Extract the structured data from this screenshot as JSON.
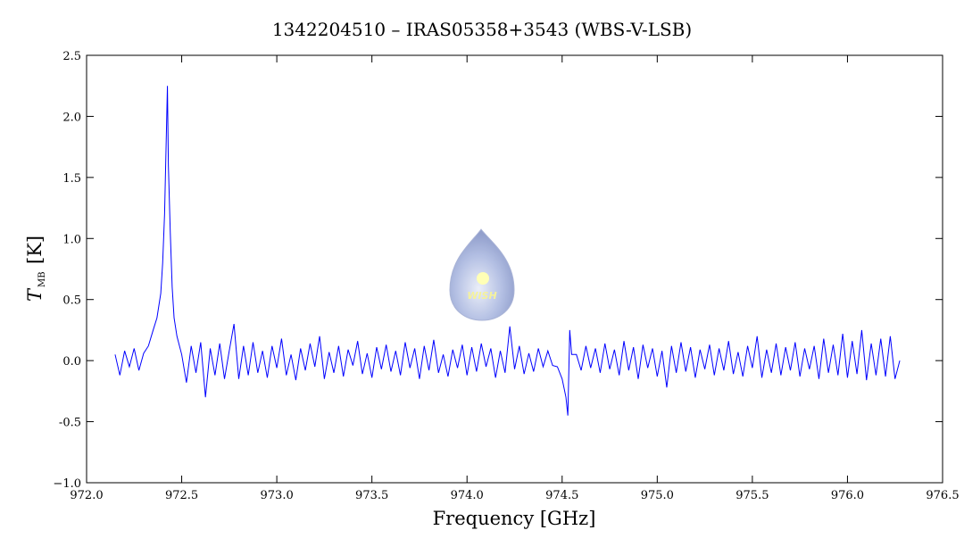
{
  "chart_data": {
    "type": "line",
    "title": "1342204510 – IRAS05358+3543 (WBS-V-LSB)",
    "xlabel": "Frequency [GHz]",
    "ylabel": "T",
    "ylabel_sub": "MB",
    "ylabel_unit": "[K]",
    "logo_text": "WISH",
    "color": "#0000ff",
    "x": [
      972.15,
      972.175,
      972.2,
      972.225,
      972.25,
      972.275,
      972.3,
      972.325,
      972.35,
      972.37,
      972.39,
      972.4,
      972.41,
      972.42,
      972.425,
      972.43,
      972.44,
      972.45,
      972.46,
      972.475,
      972.5,
      972.525,
      972.55,
      972.575,
      972.6,
      972.625,
      972.65,
      972.675,
      972.7,
      972.725,
      972.75,
      972.775,
      972.8,
      972.825,
      972.85,
      972.875,
      972.9,
      972.925,
      972.95,
      972.975,
      973.0,
      973.025,
      973.05,
      973.075,
      973.1,
      973.125,
      973.15,
      973.175,
      973.2,
      973.225,
      973.25,
      973.275,
      973.3,
      973.325,
      973.35,
      973.375,
      973.4,
      973.425,
      973.45,
      973.475,
      973.5,
      973.525,
      973.55,
      973.575,
      973.6,
      973.625,
      973.65,
      973.675,
      973.7,
      973.725,
      973.75,
      973.775,
      973.8,
      973.825,
      973.85,
      973.875,
      973.9,
      973.925,
      973.95,
      973.975,
      974.0,
      974.025,
      974.05,
      974.075,
      974.1,
      974.125,
      974.15,
      974.175,
      974.2,
      974.225,
      974.25,
      974.275,
      974.3,
      974.325,
      974.35,
      974.375,
      974.4,
      974.425,
      974.45,
      974.475,
      974.5,
      974.52,
      974.53,
      974.54,
      974.55,
      974.575,
      974.6,
      974.625,
      974.65,
      974.675,
      974.7,
      974.725,
      974.75,
      974.775,
      974.8,
      974.825,
      974.85,
      974.875,
      974.9,
      974.925,
      974.95,
      974.975,
      975.0,
      975.025,
      975.05,
      975.075,
      975.1,
      975.125,
      975.15,
      975.175,
      975.2,
      975.225,
      975.25,
      975.275,
      975.3,
      975.325,
      975.35,
      975.375,
      975.4,
      975.425,
      975.45,
      975.475,
      975.5,
      975.525,
      975.55,
      975.575,
      975.6,
      975.625,
      975.65,
      975.675,
      975.7,
      975.725,
      975.75,
      975.775,
      975.8,
      975.825,
      975.85,
      975.875,
      975.9,
      975.925,
      975.95,
      975.975,
      976.0,
      976.025,
      976.05,
      976.075,
      976.1,
      976.125,
      976.15,
      976.175,
      976.2,
      976.225,
      976.25,
      976.275
    ],
    "values": [
      0.05,
      -0.12,
      0.08,
      -0.05,
      0.1,
      -0.08,
      0.06,
      0.12,
      0.25,
      0.35,
      0.55,
      0.8,
      1.2,
      1.9,
      2.25,
      1.6,
      1.05,
      0.6,
      0.35,
      0.2,
      0.05,
      -0.18,
      0.12,
      -0.1,
      0.15,
      -0.3,
      0.1,
      -0.12,
      0.14,
      -0.15,
      0.08,
      0.3,
      -0.15,
      0.12,
      -0.12,
      0.15,
      -0.1,
      0.08,
      -0.14,
      0.12,
      -0.06,
      0.18,
      -0.12,
      0.05,
      -0.16,
      0.1,
      -0.08,
      0.14,
      -0.05,
      0.2,
      -0.15,
      0.07,
      -0.1,
      0.12,
      -0.13,
      0.09,
      -0.04,
      0.16,
      -0.11,
      0.06,
      -0.14,
      0.11,
      -0.07,
      0.13,
      -0.09,
      0.08,
      -0.12,
      0.15,
      -0.06,
      0.1,
      -0.15,
      0.12,
      -0.08,
      0.17,
      -0.1,
      0.05,
      -0.13,
      0.09,
      -0.06,
      0.13,
      -0.12,
      0.11,
      -0.09,
      0.14,
      -0.05,
      0.1,
      -0.14,
      0.08,
      -0.1,
      0.28,
      -0.07,
      0.12,
      -0.11,
      0.06,
      -0.09,
      0.1,
      -0.05,
      0.08,
      -0.04,
      -0.05,
      -0.15,
      -0.3,
      -0.45,
      0.25,
      0.05,
      0.05,
      -0.08,
      0.12,
      -0.06,
      0.1,
      -0.1,
      0.14,
      -0.07,
      0.09,
      -0.12,
      0.16,
      -0.08,
      0.11,
      -0.15,
      0.13,
      -0.06,
      0.1,
      -0.13,
      0.08,
      -0.22,
      0.12,
      -0.1,
      0.15,
      -0.09,
      0.11,
      -0.14,
      0.09,
      -0.07,
      0.13,
      -0.12,
      0.1,
      -0.08,
      0.16,
      -0.11,
      0.07,
      -0.13,
      0.12,
      -0.06,
      0.2,
      -0.14,
      0.09,
      -0.1,
      0.14,
      -0.12,
      0.11,
      -0.08,
      0.15,
      -0.13,
      0.1,
      -0.07,
      0.12,
      -0.15,
      0.18,
      -0.1,
      0.13,
      -0.12,
      0.22,
      -0.14,
      0.16,
      -0.11,
      0.25,
      -0.16,
      0.14,
      -0.12,
      0.18,
      -0.13,
      0.2,
      -0.15,
      0.0
    ],
    "xlim": [
      972.0,
      976.5
    ],
    "xticks": [
      {
        "value": 972,
        "label": "972.0"
      },
      972.5,
      {
        "value": 973,
        "label": "973.0"
      },
      973.5,
      {
        "value": 974,
        "label": "974.0"
      },
      974.5,
      {
        "value": 975,
        "label": "975.0"
      },
      975.5,
      {
        "value": 976,
        "label": "976.0"
      },
      976.5
    ],
    "ylim": [
      -1.0,
      2.5
    ],
    "yticks": [
      {
        "value": -1,
        "label": "−1.0"
      },
      -0.5,
      {
        "value": 0,
        "label": "0.0"
      },
      0.5,
      {
        "value": 1,
        "label": "1.0"
      },
      1.5,
      {
        "value": 2,
        "label": "2.0"
      },
      2.5
    ],
    "grid": false
  }
}
